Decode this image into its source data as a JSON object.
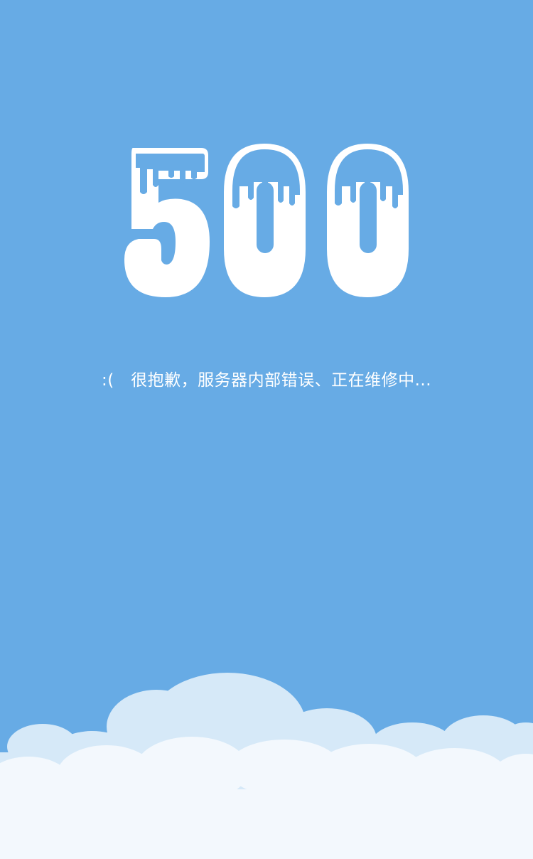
{
  "error": {
    "code": "500",
    "message": ":(   很抱歉，服务器内部错误、正在维修中..."
  },
  "theme": {
    "background": "#67abe5",
    "text": "#ffffff",
    "snow_drip": "#67abe5",
    "cloud_back": "#d6e9f8",
    "cloud_front": "#f3f8fd"
  },
  "icons": {
    "error_code_art": "snow-capped-500-icon",
    "clouds": "clouds-icon"
  }
}
